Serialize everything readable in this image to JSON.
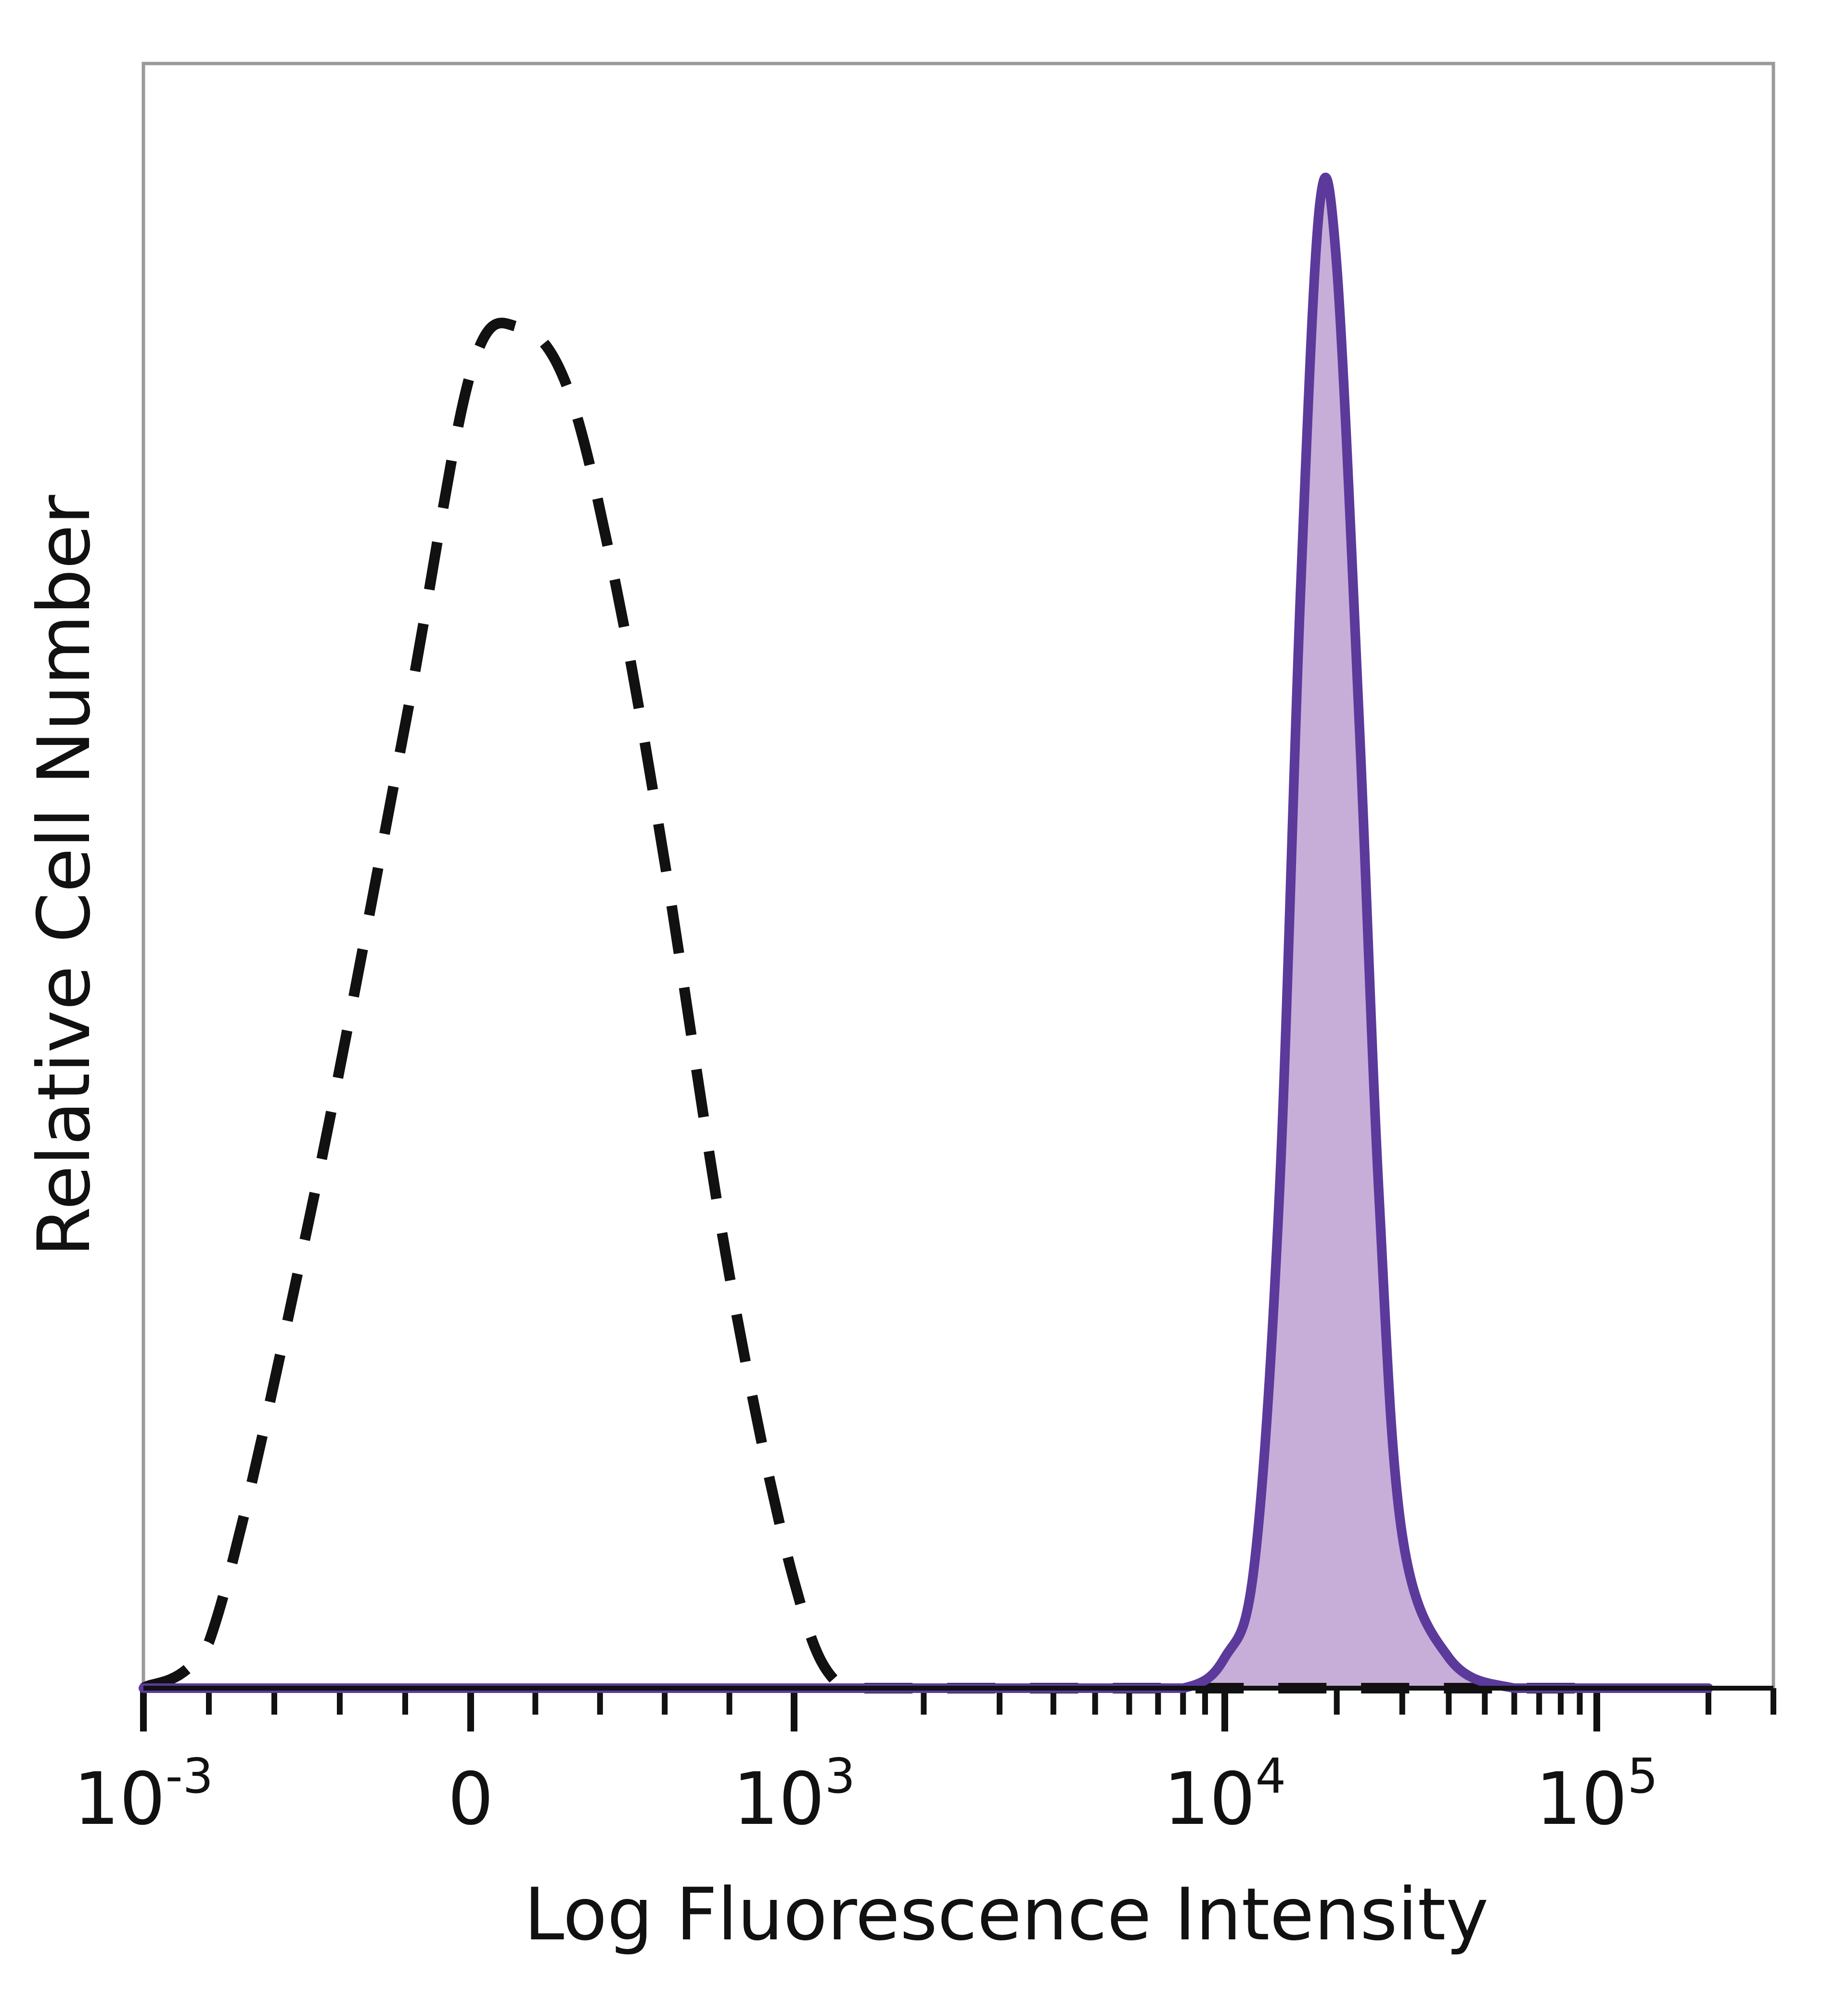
{
  "chart_data": {
    "type": "line",
    "title": "",
    "xlabel": "Log Fluorescence Intensity",
    "ylabel": "Relative Cell Number",
    "x_scale": "biexponential",
    "grid": false,
    "legend": "none",
    "x_tick_labels": [
      {
        "value": -0.001,
        "base": "10",
        "exp": "-3"
      },
      {
        "value": 0,
        "base": "0",
        "exp": ""
      },
      {
        "value": 1000,
        "base": "10",
        "exp": "3"
      },
      {
        "value": 10000,
        "base": "10",
        "exp": "4"
      },
      {
        "value": 100000,
        "base": "10",
        "exp": "5"
      }
    ],
    "ylim": [
      0,
      100
    ],
    "series": [
      {
        "style": "dashed",
        "color": "#111111",
        "fill": false,
        "x": [
          -0.001,
          -0.0008,
          -0.0005,
          -0.0002,
          0,
          150,
          300,
          450,
          600,
          800,
          1000,
          1300,
          2000,
          4000,
          10000,
          100000
        ],
        "y": [
          0,
          3,
          30,
          63,
          86,
          89,
          85,
          72,
          54,
          27,
          7,
          0,
          0,
          0,
          0,
          0
        ]
      },
      {
        "style": "solid",
        "color": "#5b3a9b",
        "fill": true,
        "fill_color": "#c7aed8",
        "x": [
          -0.001,
          1000,
          5000,
          8000,
          10000,
          12000,
          14000,
          16000,
          18000,
          20000,
          23000,
          26000,
          30000,
          40000,
          60000,
          100000,
          200000
        ],
        "y": [
          0,
          0,
          0,
          0,
          2,
          8,
          32,
          72,
          97,
          93,
          63,
          32,
          10,
          2,
          0,
          0,
          0
        ]
      }
    ]
  }
}
